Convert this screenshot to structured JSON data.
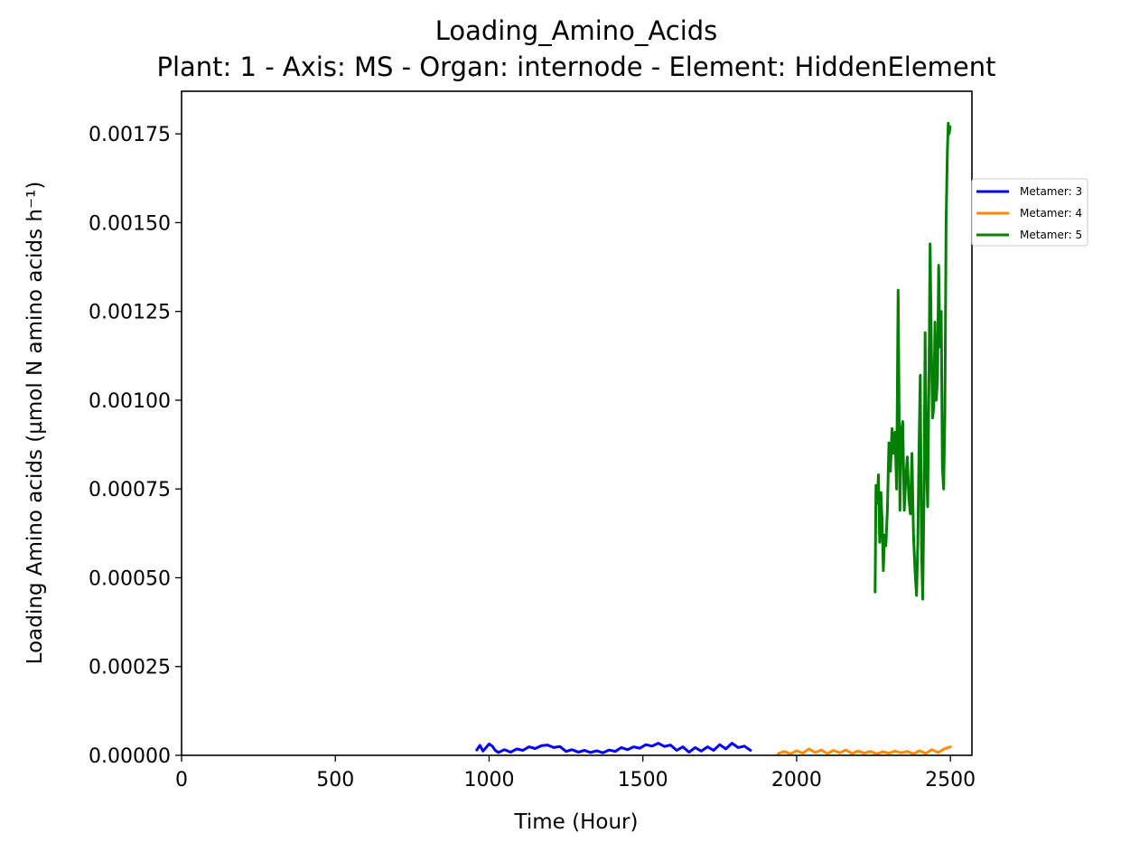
{
  "chart_data": {
    "type": "line",
    "title": "Loading_Amino_Acids",
    "subtitle": "Plant: 1 - Axis: MS - Organ: internode - Element: HiddenElement",
    "xlabel": "Time (Hour)",
    "ylabel": "Loading Amino acids (µmol N amino acids h⁻¹)",
    "xlim": [
      0,
      2570
    ],
    "ylim": [
      0,
      0.00187
    ],
    "x_ticks": [
      "0",
      "500",
      "1000",
      "1500",
      "2000",
      "2500"
    ],
    "y_ticks": [
      "0.00000",
      "0.00025",
      "0.00050",
      "0.00075",
      "0.00100",
      "0.00125",
      "0.00150",
      "0.00175"
    ],
    "grid": false,
    "legend_position": "outside-right",
    "series": [
      {
        "name": "Metamer: 3",
        "color": "#0000ff",
        "x": [
          960,
          970,
          980,
          990,
          1000,
          1010,
          1020,
          1030,
          1050,
          1070,
          1090,
          1110,
          1130,
          1150,
          1170,
          1190,
          1210,
          1230,
          1250,
          1270,
          1290,
          1310,
          1330,
          1350,
          1370,
          1390,
          1410,
          1430,
          1450,
          1470,
          1490,
          1510,
          1530,
          1550,
          1570,
          1590,
          1610,
          1630,
          1650,
          1670,
          1690,
          1710,
          1730,
          1750,
          1770,
          1790,
          1810,
          1830,
          1850
        ],
        "y": [
          1.5e-05,
          2.8e-05,
          1.2e-05,
          2.2e-05,
          3.2e-05,
          2.6e-05,
          1.4e-05,
          8e-06,
          1.6e-05,
          9e-06,
          1.8e-05,
          1.4e-05,
          2.4e-05,
          1.9e-05,
          2.7e-05,
          2.9e-05,
          2.2e-05,
          2.5e-05,
          1.1e-05,
          1.6e-05,
          9e-06,
          1.4e-05,
          8e-06,
          1.3e-05,
          7e-06,
          1.5e-05,
          1.1e-05,
          2.2e-05,
          1.6e-05,
          2.4e-05,
          2e-05,
          3e-05,
          2.6e-05,
          3.4e-05,
          2.5e-05,
          2.9e-05,
          1.4e-05,
          2.4e-05,
          9e-06,
          2.2e-05,
          1.2e-05,
          2.4e-05,
          1.4e-05,
          3e-05,
          1.8e-05,
          3.4e-05,
          2.2e-05,
          2.6e-05,
          1.4e-05
        ]
      },
      {
        "name": "Metamer: 4",
        "color": "#ff8c00",
        "x": [
          1940,
          1960,
          1980,
          2000,
          2020,
          2040,
          2060,
          2080,
          2100,
          2120,
          2140,
          2160,
          2180,
          2200,
          2220,
          2240,
          2260,
          2280,
          2300,
          2320,
          2340,
          2360,
          2380,
          2400,
          2420,
          2440,
          2460,
          2480,
          2500
        ],
        "y": [
          5e-06,
          1.1e-05,
          4e-06,
          1.3e-05,
          6e-06,
          1.8e-05,
          8e-06,
          1.5e-05,
          5e-06,
          1.4e-05,
          7e-06,
          1.5e-05,
          5e-06,
          1.2e-05,
          6e-06,
          1.1e-05,
          4e-06,
          1e-05,
          6e-06,
          1.2e-05,
          7e-06,
          1.1e-05,
          4e-06,
          1.3e-05,
          5e-06,
          1.6e-05,
          8e-06,
          1.8e-05,
          2.4e-05
        ]
      },
      {
        "name": "Metamer: 5",
        "color": "#008000",
        "x": [
          2255,
          2258,
          2262,
          2266,
          2270,
          2274,
          2278,
          2282,
          2286,
          2290,
          2295,
          2300,
          2305,
          2310,
          2315,
          2320,
          2325,
          2330,
          2333,
          2336,
          2340,
          2345,
          2350,
          2355,
          2360,
          2365,
          2370,
          2375,
          2380,
          2385,
          2390,
          2394,
          2398,
          2402,
          2406,
          2410,
          2414,
          2418,
          2422,
          2426,
          2430,
          2434,
          2438,
          2442,
          2446,
          2450,
          2454,
          2458,
          2462,
          2466,
          2470,
          2474,
          2478,
          2482,
          2486,
          2490,
          2493,
          2496,
          2499
        ],
        "y": [
          0.00046,
          0.00076,
          0.00071,
          0.00079,
          0.0006,
          0.00074,
          0.00066,
          0.00052,
          0.00062,
          0.00059,
          0.00069,
          0.00088,
          0.0008,
          0.00092,
          0.00085,
          0.00091,
          0.00075,
          0.00131,
          0.001,
          0.00069,
          0.00091,
          0.00094,
          0.00069,
          0.00078,
          0.00084,
          0.00072,
          0.00068,
          0.00085,
          0.00062,
          0.00052,
          0.00045,
          0.0006,
          0.00086,
          0.00107,
          0.00058,
          0.00044,
          0.00072,
          0.00119,
          0.00082,
          0.0007,
          0.00102,
          0.00144,
          0.00115,
          0.00095,
          0.00098,
          0.00122,
          0.001,
          0.00106,
          0.00138,
          0.00115,
          0.00125,
          0.00081,
          0.00075,
          0.00095,
          0.0015,
          0.0017,
          0.00178,
          0.00175,
          0.00177
        ]
      }
    ]
  }
}
